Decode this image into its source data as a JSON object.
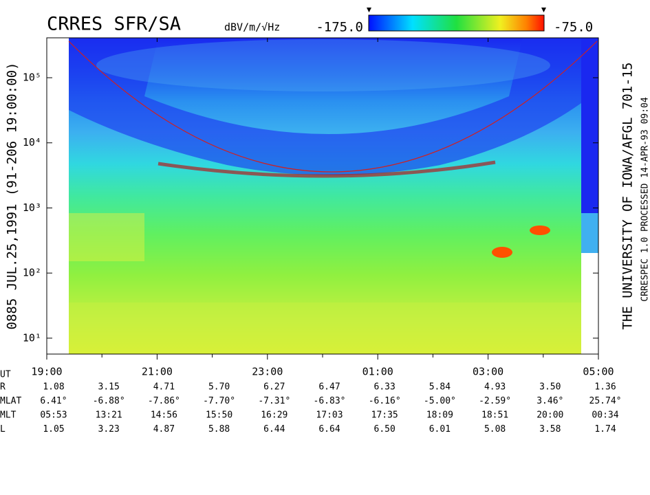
{
  "chart_data": {
    "type": "spectrogram",
    "title": "CRRES SFR/SA",
    "colorbar": {
      "unit": "dBV/m/√Hz",
      "range": [
        {
          "value": -175,
          "label": "-175.0"
        },
        {
          "value": -75,
          "label": "-75.0"
        }
      ]
    },
    "left_label": "0885   JUL.25,1991   (91-206 19:00:00)",
    "right_label": "THE UNIVERSITY OF IOWA/AFGL 701-15",
    "right_note": "CRRESPEC 1.0   PROCESSED 14-APR-93  09:04",
    "log_y": true,
    "ylim": [
      5.7,
      410000
    ],
    "yticks": [
      {
        "value": 10,
        "label": "10¹"
      },
      {
        "value": 100,
        "label": "10²"
      },
      {
        "value": 1000,
        "label": "10³"
      },
      {
        "value": 10000,
        "label": "10⁴"
      },
      {
        "value": 100000,
        "label": "10⁵"
      }
    ],
    "xlim": [
      19,
      29
    ],
    "xticks": [
      {
        "value": 19,
        "label": "19:00"
      },
      {
        "value": 21,
        "label": "21:00"
      },
      {
        "value": 23,
        "label": "23:00"
      },
      {
        "value": 25,
        "label": "01:00"
      },
      {
        "value": 27,
        "label": "03:00"
      },
      {
        "value": 29,
        "label": "05:00"
      }
    ],
    "x_axis_label": "UT",
    "ephemeris": [
      {
        "name": "R",
        "values": [
          "1.08",
          "3.15",
          "4.71",
          "5.70",
          "6.27",
          "6.47",
          "6.33",
          "5.84",
          "4.93",
          "3.50",
          "1.36"
        ]
      },
      {
        "name": "MLAT",
        "values": [
          "6.41°",
          "-6.88°",
          "-7.86°",
          "-7.70°",
          "-7.31°",
          "-6.83°",
          "-6.16°",
          "-5.00°",
          "-2.59°",
          "3.46°",
          "25.74°"
        ]
      },
      {
        "name": "MLT",
        "values": [
          "05:53",
          "13:21",
          "14:56",
          "15:50",
          "16:29",
          "17:03",
          "17:35",
          "18:09",
          "18:51",
          "20:00",
          "00:34"
        ]
      },
      {
        "name": "L",
        "values": [
          "1.05",
          "3.23",
          "4.87",
          "5.88",
          "6.44",
          "6.64",
          "6.50",
          "6.01",
          "5.08",
          "3.58",
          "1.74"
        ]
      }
    ]
  }
}
